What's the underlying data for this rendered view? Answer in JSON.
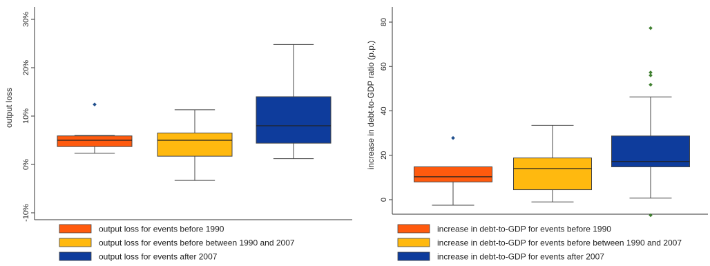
{
  "chart_data": [
    {
      "type": "box",
      "title": "",
      "xlabel": "",
      "ylabel": "output loss",
      "ylim": [
        -10,
        30
      ],
      "yticks": [
        -10,
        0,
        10,
        20,
        30
      ],
      "ytick_labels": [
        "-10%",
        "0%",
        "10%",
        "20%",
        "30%"
      ],
      "grid": false,
      "legend_position": "bottom",
      "series": [
        {
          "name": "output loss for events before 1990",
          "color": "#FF5A0E",
          "whisker_low": 2.3,
          "q1": 3.7,
          "median": 5.0,
          "q3": 5.9,
          "whisker_high": 6.0,
          "outliers": [
            12.4
          ]
        },
        {
          "name": "output loss for events before between 1990 and 2007",
          "color": "#FFB90F",
          "whisker_low": -3.3,
          "q1": 1.7,
          "median": 5.0,
          "q3": 6.5,
          "whisker_high": 11.3,
          "outliers": []
        },
        {
          "name": "output loss for events after 2007",
          "color": "#0E3C9C",
          "whisker_low": 1.2,
          "q1": 4.4,
          "median": 8.0,
          "q3": 14.0,
          "whisker_high": 24.8,
          "outliers": []
        }
      ]
    },
    {
      "type": "box",
      "title": "",
      "xlabel": "",
      "ylabel": "increase in debt-to-GDP ratio (p.p.)",
      "ylim": [
        -7,
        83
      ],
      "yticks": [
        0,
        20,
        40,
        60,
        80
      ],
      "ytick_labels": [
        "0",
        "20",
        "40",
        "60",
        "80"
      ],
      "grid": false,
      "legend_position": "bottom",
      "series": [
        {
          "name": "increase in debt-to-GDP for events before 1990",
          "color": "#FF5A0E",
          "whisker_low": -2.5,
          "q1": 8.0,
          "median": 10.3,
          "q3": 14.8,
          "whisker_high": 14.8,
          "outliers": [
            27.8
          ]
        },
        {
          "name": "increase in debt-to-GDP for events before between 1990 and 2007",
          "color": "#FFB90F",
          "whisker_low": -1.0,
          "q1": 4.5,
          "median": 14.0,
          "q3": 18.8,
          "whisker_high": 33.5,
          "outliers": []
        },
        {
          "name": "increase in debt-to-GDP for events after 2007",
          "color": "#0E3C9C",
          "whisker_low": 0.7,
          "q1": 14.8,
          "median": 17.2,
          "q3": 28.7,
          "whisker_high": 46.3,
          "outliers": [
            77.3,
            57.3,
            56.0,
            51.8,
            -7.0
          ]
        }
      ]
    }
  ]
}
